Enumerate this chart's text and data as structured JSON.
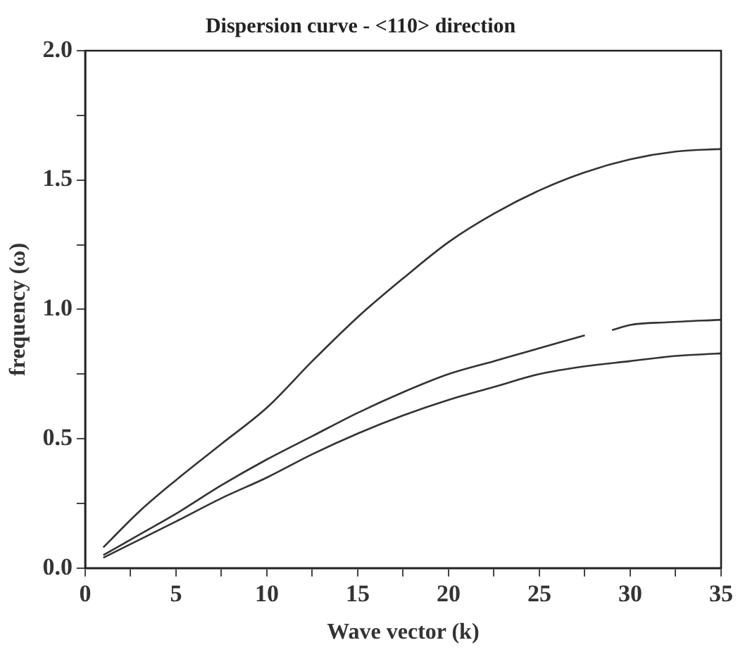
{
  "chart_data": {
    "type": "line",
    "title": "Dispersion curve - <110> direction",
    "xlabel": "Wave vector (k)",
    "ylabel": "frequency (ω)",
    "xlim": [
      0,
      35
    ],
    "ylim": [
      0,
      2
    ],
    "xticks": [
      0,
      {
        "value": 2.5,
        "label": null
      },
      5,
      {
        "value": 7.5,
        "label": null
      },
      10,
      {
        "value": 12.5,
        "label": null
      },
      15,
      {
        "value": 17.5,
        "label": null
      },
      20,
      {
        "value": 22.5,
        "label": null
      },
      25,
      {
        "value": 27.5,
        "label": null
      },
      30,
      {
        "value": 32.5,
        "label": null
      },
      35
    ],
    "yticks": [
      {
        "value": 0,
        "label": "0.0"
      },
      {
        "value": 0.25,
        "label": null
      },
      0.5,
      {
        "value": 0.75,
        "label": null
      },
      {
        "value": 1,
        "label": "1.0"
      },
      {
        "value": 1.25,
        "label": null
      },
      1.5,
      {
        "value": 1.75,
        "label": null
      },
      {
        "value": 2,
        "label": "2.0"
      }
    ],
    "grid": false,
    "legend": false,
    "marker": "none",
    "line_style": "solid",
    "series": [
      {
        "color": "#333333",
        "x": [
          1,
          3,
          5,
          7.5,
          10,
          12.5,
          15,
          17.5,
          20,
          22.5,
          25,
          27.5,
          30,
          32.5,
          35
        ],
        "values": [
          0.08,
          0.22,
          0.34,
          0.48,
          0.62,
          0.8,
          0.97,
          1.12,
          1.26,
          1.37,
          1.46,
          1.53,
          1.58,
          1.61,
          1.62
        ]
      },
      {
        "color": "#333333",
        "x": [
          1,
          3,
          5,
          7.5,
          10,
          12.5,
          15,
          17.5,
          20,
          22.5,
          25,
          27.5,
          28.3,
          29,
          30,
          32,
          35
        ],
        "values": [
          0.05,
          0.13,
          0.21,
          0.32,
          0.42,
          0.51,
          0.6,
          0.68,
          0.75,
          0.8,
          0.85,
          0.9,
          null,
          0.92,
          0.94,
          0.95,
          0.96
        ]
      },
      {
        "color": "#333333",
        "x": [
          1,
          3,
          5,
          7.5,
          10,
          12.5,
          15,
          17.5,
          20,
          22.5,
          25,
          27.5,
          30,
          32.5,
          35
        ],
        "values": [
          0.04,
          0.11,
          0.18,
          0.27,
          0.35,
          0.44,
          0.52,
          0.59,
          0.65,
          0.7,
          0.75,
          0.78,
          0.8,
          0.82,
          0.83
        ]
      }
    ]
  }
}
